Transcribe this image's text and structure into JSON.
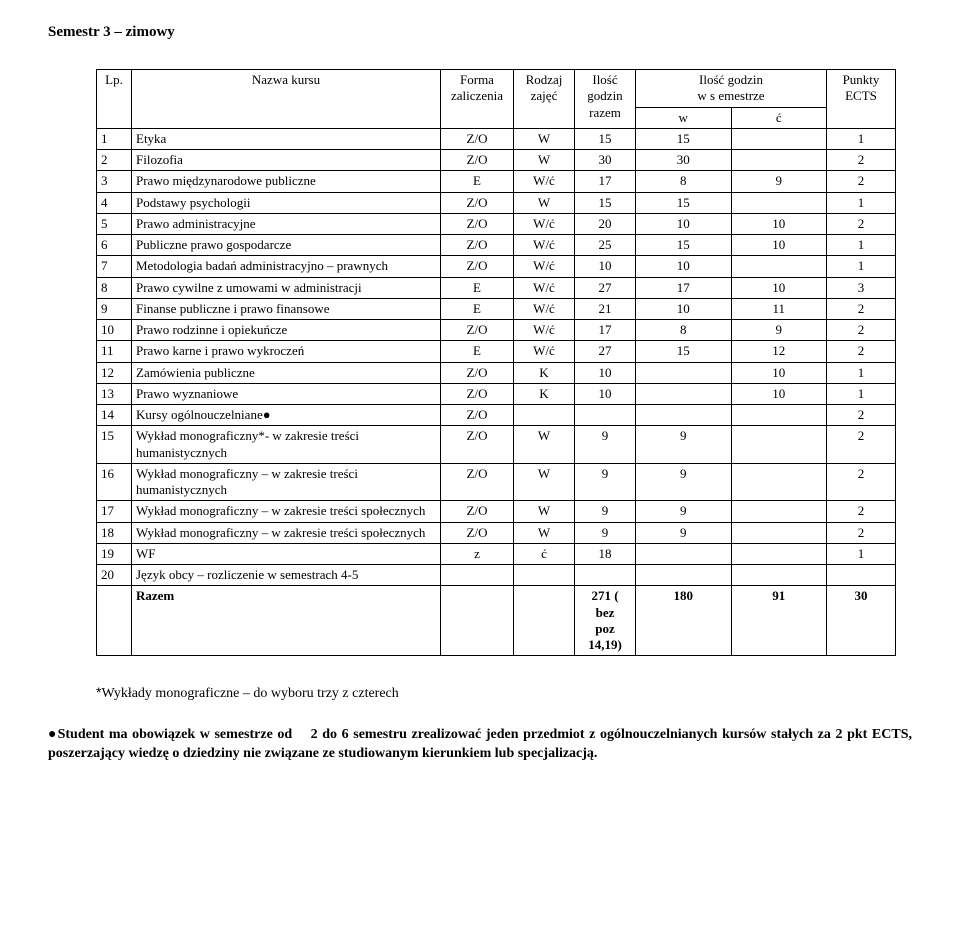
{
  "title": "Semestr 3 – zimowy",
  "columns": {
    "lp": "Lp.",
    "name": "Nazwa kursu",
    "fz": "Forma\nzaliczenia",
    "rz": "Rodzaj\nzajęć",
    "gr": "Ilość\ngodzin\nrazem",
    "gs_top": "Ilość godzin\nw s emestrze",
    "gw": "w",
    "gc": "ć",
    "pe": "Punkty\nECTS"
  },
  "rows": [
    {
      "lp": "1",
      "name": "Etyka",
      "fz": "Z/O",
      "rz": "W",
      "gr": "15",
      "gw": "15",
      "gc": "",
      "pe": "1"
    },
    {
      "lp": "2",
      "name": "Filozofia",
      "fz": "Z/O",
      "rz": "W",
      "gr": "30",
      "gw": "30",
      "gc": "",
      "pe": "2"
    },
    {
      "lp": "3",
      "name": "Prawo międzynarodowe publiczne",
      "fz": "E",
      "rz": "W/ć",
      "gr": "17",
      "gw": "8",
      "gc": "9",
      "pe": "2"
    },
    {
      "lp": "4",
      "name": "Podstawy psychologii",
      "fz": "Z/O",
      "rz": "W",
      "gr": "15",
      "gw": "15",
      "gc": "",
      "pe": "1"
    },
    {
      "lp": "5",
      "name": "Prawo administracyjne",
      "fz": "Z/O",
      "rz": "W/ć",
      "gr": "20",
      "gw": "10",
      "gc": "10",
      "pe": "2"
    },
    {
      "lp": "6",
      "name": "Publiczne prawo gospodarcze",
      "fz": "Z/O",
      "rz": "W/ć",
      "gr": "25",
      "gw": "15",
      "gc": "10",
      "pe": "1"
    },
    {
      "lp": "7",
      "name": "Metodologia badań administracyjno – prawnych",
      "fz": "Z/O",
      "rz": "W/ć",
      "gr": "10",
      "gw": "10",
      "gc": "",
      "pe": "1"
    },
    {
      "lp": "8",
      "name": "Prawo cywilne z umowami w administracji",
      "fz": "E",
      "rz": "W/ć",
      "gr": "27",
      "gw": "17",
      "gc": "10",
      "pe": "3"
    },
    {
      "lp": "9",
      "name": "Finanse publiczne i prawo finansowe",
      "fz": "E",
      "rz": "W/ć",
      "gr": "21",
      "gw": "10",
      "gc": "11",
      "pe": "2"
    },
    {
      "lp": "10",
      "name": "Prawo rodzinne i opiekuńcze",
      "fz": "Z/O",
      "rz": "W/ć",
      "gr": "17",
      "gw": "8",
      "gc": "9",
      "pe": "2"
    },
    {
      "lp": "11",
      "name": "Prawo karne i prawo wykroczeń",
      "fz": "E",
      "rz": "W/ć",
      "gr": "27",
      "gw": "15",
      "gc": "12",
      "pe": "2"
    },
    {
      "lp": "12",
      "name": "Zamówienia publiczne",
      "fz": "Z/O",
      "rz": "K",
      "gr": "10",
      "gw": "",
      "gc": "10",
      "pe": "1"
    },
    {
      "lp": "13",
      "name": "Prawo wyznaniowe",
      "fz": "Z/O",
      "rz": "K",
      "gr": "10",
      "gw": "",
      "gc": "10",
      "pe": "1"
    },
    {
      "lp": "14",
      "name": "Kursy ogólnouczelniane●",
      "fz": "Z/O",
      "rz": "",
      "gr": "",
      "gw": "",
      "gc": "",
      "pe": "2"
    },
    {
      "lp": "15",
      "name": "Wykład monograficzny*- w zakresie treści humanistycznych",
      "fz": "Z/O",
      "rz": "W",
      "gr": "9",
      "gw": "9",
      "gc": "",
      "pe": "2"
    },
    {
      "lp": "16",
      "name": "Wykład monograficzny – w zakresie treści humanistycznych",
      "fz": "Z/O",
      "rz": "W",
      "gr": "9",
      "gw": "9",
      "gc": "",
      "pe": "2"
    },
    {
      "lp": "17",
      "name": "Wykład monograficzny – w zakresie treści społecznych",
      "fz": "Z/O",
      "rz": "W",
      "gr": "9",
      "gw": "9",
      "gc": "",
      "pe": "2"
    },
    {
      "lp": "18",
      "name": "Wykład monograficzny – w zakresie treści społecznych",
      "fz": "Z/O",
      "rz": "W",
      "gr": "9",
      "gw": "9",
      "gc": "",
      "pe": "2"
    },
    {
      "lp": "19",
      "name": "WF",
      "fz": "z",
      "rz": "ć",
      "gr": "18",
      "gw": "",
      "gc": "",
      "pe": "1"
    },
    {
      "lp": "20",
      "name": "Język obcy – rozliczenie w semestrach 4-5",
      "fz": "",
      "rz": "",
      "gr": "",
      "gw": "",
      "gc": "",
      "pe": ""
    }
  ],
  "razem": {
    "label": "Razem",
    "gr": "271 (\nbez\npoz\n14,19)",
    "gw": "180",
    "gc": "91",
    "pe": "30"
  },
  "footnote1": {
    "icon": "*",
    "text": "Wykłady monograficzne – do wyboru trzy z czterech"
  },
  "footnote2": {
    "icon": "●",
    "pre": "Student ma obowiązek w semestrze od ",
    "bold1": "2 do 6 semestru zrealizować jeden przedmiot z ogólnouczelnianych kursów stałych za 2 pkt ECTS, poszerzający wiedzę o dziedziny nie związane ze studiowanym kierunkiem lub specjalizacją."
  }
}
